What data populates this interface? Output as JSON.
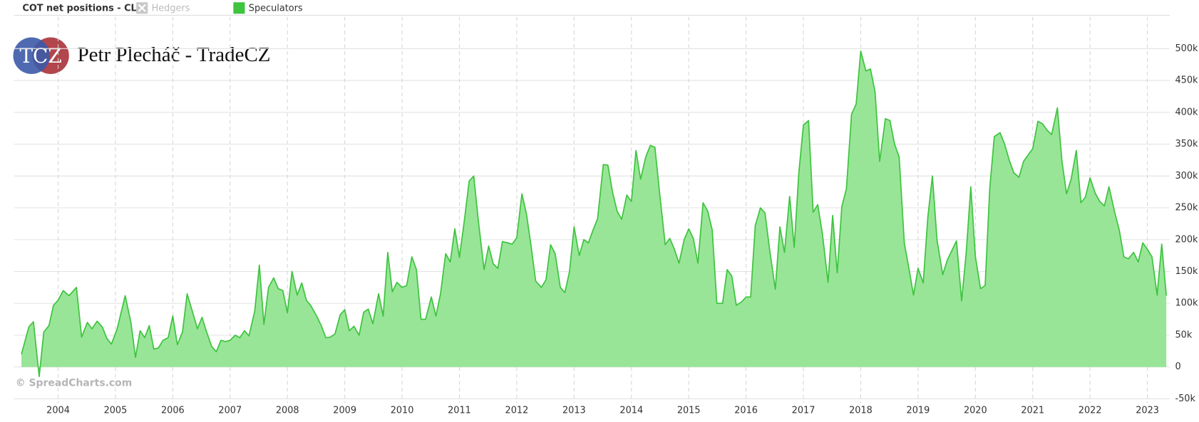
{
  "chart_data": {
    "type": "area",
    "title": "COT net positions - CL:",
    "hidden_series": [
      {
        "name": "Hedgers",
        "color": "#c8c8c8"
      }
    ],
    "annotations": {
      "logo": "TCZ",
      "author": "Petr Plecháč - TradeCZ",
      "watermark": "© SpreadCharts.com"
    },
    "x": [
      2003.36,
      2003.49,
      2003.57,
      2003.67,
      2003.75,
      2003.84,
      2003.92,
      2004,
      2004.09,
      2004.19,
      2004.32,
      2004.41,
      2004.51,
      2004.59,
      2004.68,
      2004.77,
      2004.85,
      2004.93,
      2005.03,
      2005.17,
      2005.27,
      2005.35,
      2005.43,
      2005.51,
      2005.59,
      2005.67,
      2005.75,
      2005.83,
      2005.92,
      2006,
      2006.08,
      2006.17,
      2006.25,
      2006.35,
      2006.43,
      2006.51,
      2006.59,
      2006.68,
      2006.76,
      2006.84,
      2006.92,
      2007,
      2007.09,
      2007.17,
      2007.25,
      2007.33,
      2007.43,
      2007.51,
      2007.59,
      2007.67,
      2007.76,
      2007.84,
      2007.92,
      2008,
      2008.08,
      2008.17,
      2008.25,
      2008.33,
      2008.41,
      2008.51,
      2008.59,
      2008.67,
      2008.75,
      2008.83,
      2008.92,
      2009,
      2009.08,
      2009.16,
      2009.25,
      2009.33,
      2009.41,
      2009.49,
      2009.59,
      2009.67,
      2009.75,
      2009.83,
      2009.91,
      2010,
      2010.08,
      2010.17,
      2010.25,
      2010.33,
      2010.41,
      2010.51,
      2010.59,
      2010.67,
      2010.76,
      2010.84,
      2010.92,
      2011,
      2011.09,
      2011.17,
      2011.25,
      2011.33,
      2011.43,
      2011.51,
      2011.59,
      2011.67,
      2011.75,
      2011.84,
      2011.92,
      2012,
      2012.09,
      2012.17,
      2012.25,
      2012.33,
      2012.43,
      2012.51,
      2012.59,
      2012.67,
      2012.76,
      2012.84,
      2012.92,
      2013,
      2013.09,
      2013.17,
      2013.25,
      2013.33,
      2013.41,
      2013.51,
      2013.59,
      2013.67,
      2013.75,
      2013.83,
      2013.92,
      2014,
      2014.08,
      2014.16,
      2014.25,
      2014.33,
      2014.41,
      2014.49,
      2014.59,
      2014.67,
      2014.75,
      2014.83,
      2014.92,
      2015,
      2015.08,
      2015.16,
      2015.25,
      2015.33,
      2015.41,
      2015.49,
      2015.59,
      2015.67,
      2015.75,
      2015.83,
      2015.92,
      2016,
      2016.08,
      2016.16,
      2016.25,
      2016.33,
      2016.41,
      2016.51,
      2016.59,
      2016.67,
      2016.76,
      2016.84,
      2016.92,
      2017,
      2017.09,
      2017.17,
      2017.25,
      2017.33,
      2017.43,
      2017.51,
      2017.59,
      2017.67,
      2017.75,
      2017.84,
      2017.92,
      2018,
      2018.09,
      2018.17,
      2018.25,
      2018.33,
      2018.43,
      2018.51,
      2018.59,
      2018.67,
      2018.76,
      2018.84,
      2018.92,
      2019,
      2019.09,
      2019.17,
      2019.25,
      2019.33,
      2019.43,
      2019.51,
      2019.59,
      2019.67,
      2019.76,
      2019.84,
      2019.92,
      2020,
      2020.09,
      2020.17,
      2020.25,
      2020.33,
      2020.43,
      2020.51,
      2020.59,
      2020.67,
      2020.76,
      2020.84,
      2020.92,
      2021,
      2021.09,
      2021.17,
      2021.25,
      2021.33,
      2021.43,
      2021.51,
      2021.59,
      2021.67,
      2021.76,
      2021.84,
      2021.92,
      2022,
      2022.09,
      2022.17,
      2022.25,
      2022.33,
      2022.43,
      2022.51,
      2022.59,
      2022.67,
      2022.76,
      2022.84,
      2022.92,
      2023,
      2023.08,
      2023.17,
      2023.25,
      2023.33
    ],
    "series": [
      {
        "name": "Speculators",
        "color": "#3ec43e",
        "fill": "#98e598",
        "values": [
          20000,
          63000,
          71000,
          -15000,
          55000,
          65000,
          97000,
          105000,
          120000,
          112000,
          125000,
          47000,
          70000,
          60000,
          72000,
          63000,
          45000,
          36000,
          60000,
          112000,
          70000,
          15000,
          57000,
          46000,
          65000,
          28000,
          30000,
          42000,
          46000,
          80000,
          35000,
          55000,
          115000,
          85000,
          60000,
          78000,
          55000,
          32000,
          24000,
          42000,
          40000,
          42000,
          50000,
          46000,
          57000,
          49000,
          88000,
          160000,
          67000,
          125000,
          140000,
          123000,
          120000,
          85000,
          150000,
          113000,
          132000,
          105000,
          96000,
          80000,
          65000,
          46000,
          47000,
          52000,
          82000,
          90000,
          57000,
          64000,
          50000,
          86000,
          91000,
          68000,
          115000,
          80000,
          180000,
          118000,
          133000,
          125000,
          128000,
          173000,
          153000,
          75000,
          75000,
          110000,
          80000,
          115000,
          178000,
          165000,
          217000,
          172000,
          233000,
          292000,
          300000,
          230000,
          153000,
          190000,
          162000,
          155000,
          197000,
          195000,
          193000,
          203000,
          272000,
          240000,
          190000,
          135000,
          125000,
          137000,
          192000,
          178000,
          125000,
          117000,
          150000,
          220000,
          175000,
          200000,
          195000,
          215000,
          233000,
          318000,
          317000,
          275000,
          245000,
          232000,
          270000,
          260000,
          340000,
          295000,
          330000,
          348000,
          345000,
          275000,
          192000,
          202000,
          185000,
          163000,
          200000,
          217000,
          202000,
          163000,
          258000,
          245000,
          215000,
          100000,
          100000,
          153000,
          143000,
          97000,
          102000,
          110000,
          110000,
          222000,
          250000,
          242000,
          185000,
          122000,
          220000,
          180000,
          268000,
          188000,
          305000,
          380000,
          387000,
          243000,
          255000,
          210000,
          133000,
          238000,
          148000,
          252000,
          280000,
          397000,
          413000,
          496000,
          465000,
          468000,
          432000,
          323000,
          390000,
          387000,
          350000,
          330000,
          195000,
          155000,
          113000,
          155000,
          132000,
          235000,
          300000,
          200000,
          145000,
          168000,
          183000,
          198000,
          104000,
          180000,
          283000,
          173000,
          123000,
          128000,
          280000,
          362000,
          368000,
          350000,
          325000,
          305000,
          298000,
          323000,
          333000,
          343000,
          386000,
          382000,
          372000,
          365000,
          407000,
          323000,
          272000,
          295000,
          340000,
          258000,
          267000,
          297000,
          273000,
          260000,
          253000,
          283000,
          243000,
          215000,
          173000,
          170000,
          180000,
          165000,
          195000,
          185000,
          173000,
          113000,
          193000,
          112000
        ]
      }
    ],
    "xlim": [
      2003.23,
      2023.39
    ],
    "xticks": [
      2004,
      2005,
      2006,
      2007,
      2008,
      2009,
      2010,
      2011,
      2012,
      2013,
      2014,
      2015,
      2016,
      2017,
      2018,
      2019,
      2020,
      2021,
      2022,
      2023
    ],
    "ylim": [
      -60000,
      550000
    ],
    "yticks": [
      {
        "value": -50000,
        "label": "-50k"
      },
      0,
      {
        "value": 50000,
        "label": "50k"
      },
      {
        "value": 100000,
        "label": "100k"
      },
      {
        "value": 150000,
        "label": "150k"
      },
      {
        "value": 200000,
        "label": "200k"
      },
      {
        "value": 250000,
        "label": "250k"
      },
      {
        "value": 300000,
        "label": "300k"
      },
      {
        "value": 350000,
        "label": "350k"
      },
      {
        "value": 400000,
        "label": "400k"
      },
      {
        "value": 450000,
        "label": "450k"
      },
      {
        "value": 500000,
        "label": "500k"
      }
    ],
    "grid": true
  }
}
